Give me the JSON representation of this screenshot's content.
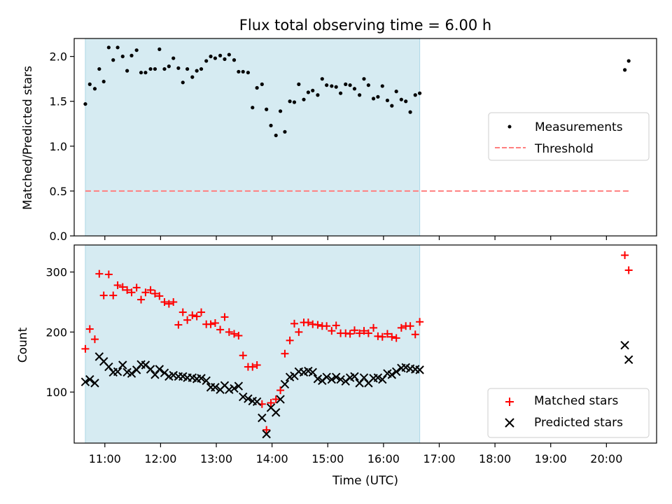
{
  "title": "Flux total observing time = 6.00 h",
  "colors": {
    "shade": "#add8e6",
    "threshold": "#ff7f7f",
    "matched": "#ff0000",
    "predicted": "#000000",
    "measurements": "#000000"
  },
  "chart_data": [
    {
      "type": "scatter",
      "ylabel": "Matched/Predicted stars",
      "xlim": [
        10.45,
        20.9
      ],
      "ylim": [
        0,
        2.2
      ],
      "yticks": [
        "0.0",
        "0.5",
        "1.0",
        "1.5",
        "2.0"
      ],
      "ytick_values": [
        0,
        0.5,
        1.0,
        1.5,
        2.0
      ],
      "shaded_span": [
        10.65,
        16.65
      ],
      "legend_position": "center-right",
      "legend": [
        "Measurements",
        "Threshold"
      ],
      "threshold": {
        "name": "Threshold",
        "y": 0.5,
        "x": [
          10.65,
          20.4
        ]
      },
      "series": [
        {
          "name": "Measurements",
          "marker": "dot",
          "x": [
            10.65,
            10.73,
            10.82,
            10.9,
            10.98,
            11.07,
            11.15,
            11.23,
            11.32,
            11.4,
            11.48,
            11.57,
            11.65,
            11.73,
            11.82,
            11.9,
            11.98,
            12.07,
            12.15,
            12.23,
            12.32,
            12.4,
            12.48,
            12.57,
            12.65,
            12.73,
            12.82,
            12.9,
            12.98,
            13.07,
            13.15,
            13.23,
            13.32,
            13.4,
            13.48,
            13.57,
            13.65,
            13.73,
            13.82,
            13.9,
            13.98,
            14.07,
            14.15,
            14.23,
            14.32,
            14.4,
            14.48,
            14.57,
            14.65,
            14.73,
            14.82,
            14.9,
            14.98,
            15.07,
            15.15,
            15.23,
            15.32,
            15.4,
            15.48,
            15.57,
            15.65,
            15.73,
            15.82,
            15.9,
            15.98,
            16.07,
            16.15,
            16.23,
            16.32,
            16.4,
            16.48,
            16.57,
            16.65,
            20.33,
            20.4
          ],
          "y": [
            1.47,
            1.69,
            1.64,
            1.86,
            1.72,
            2.1,
            1.96,
            2.1,
            2.0,
            1.84,
            2.01,
            2.07,
            1.82,
            1.82,
            1.86,
            1.86,
            2.08,
            1.86,
            1.89,
            1.98,
            1.87,
            1.71,
            1.86,
            1.77,
            1.84,
            1.86,
            1.95,
            2.0,
            1.98,
            2.01,
            1.97,
            2.02,
            1.96,
            1.83,
            1.83,
            1.82,
            1.43,
            1.65,
            1.69,
            1.41,
            1.23,
            1.12,
            1.39,
            1.16,
            1.5,
            1.49,
            1.69,
            1.52,
            1.6,
            1.62,
            1.57,
            1.75,
            1.68,
            1.67,
            1.66,
            1.59,
            1.69,
            1.68,
            1.64,
            1.57,
            1.75,
            1.68,
            1.53,
            1.55,
            1.67,
            1.51,
            1.45,
            1.61,
            1.52,
            1.5,
            1.38,
            1.57,
            1.59,
            1.85,
            1.95
          ]
        }
      ]
    },
    {
      "type": "scatter",
      "ylabel": "Count",
      "xlabel": "Time (UTC)",
      "xlim": [
        10.45,
        20.9
      ],
      "ylim": [
        15,
        345
      ],
      "yticks": [
        "100",
        "200",
        "300"
      ],
      "ytick_values": [
        100,
        200,
        300
      ],
      "xticks": [
        "11:00",
        "12:00",
        "13:00",
        "14:00",
        "15:00",
        "16:00",
        "17:00",
        "18:00",
        "19:00",
        "20:00"
      ],
      "xtick_values": [
        11,
        12,
        13,
        14,
        15,
        16,
        17,
        18,
        19,
        20
      ],
      "shaded_span": [
        10.65,
        16.65
      ],
      "legend_position": "lower-right",
      "legend": [
        "Matched stars",
        "Predicted stars"
      ],
      "series": [
        {
          "name": "Matched stars",
          "marker": "plus",
          "x": [
            10.65,
            10.73,
            10.82,
            10.9,
            10.98,
            11.07,
            11.15,
            11.23,
            11.32,
            11.4,
            11.48,
            11.57,
            11.65,
            11.73,
            11.82,
            11.9,
            11.98,
            12.07,
            12.15,
            12.23,
            12.32,
            12.4,
            12.48,
            12.57,
            12.65,
            12.73,
            12.82,
            12.9,
            12.98,
            13.07,
            13.15,
            13.23,
            13.32,
            13.4,
            13.48,
            13.57,
            13.65,
            13.73,
            13.82,
            13.9,
            13.98,
            14.07,
            14.15,
            14.23,
            14.32,
            14.4,
            14.48,
            14.57,
            14.65,
            14.73,
            14.82,
            14.9,
            14.98,
            15.07,
            15.15,
            15.23,
            15.32,
            15.4,
            15.48,
            15.57,
            15.65,
            15.73,
            15.82,
            15.9,
            15.98,
            16.07,
            16.15,
            16.23,
            16.32,
            16.4,
            16.48,
            16.57,
            16.65,
            20.33,
            20.4
          ],
          "y": [
            172,
            205,
            188,
            297,
            261,
            296,
            261,
            278,
            275,
            270,
            266,
            274,
            254,
            266,
            270,
            264,
            260,
            250,
            247,
            250,
            212,
            233,
            220,
            228,
            226,
            233,
            213,
            213,
            215,
            204,
            225,
            200,
            197,
            194,
            161,
            142,
            142,
            145,
            80,
            37,
            82,
            88,
            103,
            164,
            186,
            214,
            200,
            216,
            216,
            213,
            212,
            210,
            210,
            202,
            211,
            198,
            198,
            197,
            203,
            198,
            202,
            198,
            207,
            193,
            192,
            197,
            192,
            190,
            207,
            210,
            210,
            196,
            217,
            328,
            303
          ]
        },
        {
          "name": "Predicted stars",
          "marker": "x",
          "x": [
            10.65,
            10.73,
            10.82,
            10.9,
            10.98,
            11.07,
            11.15,
            11.23,
            11.32,
            11.4,
            11.48,
            11.57,
            11.65,
            11.73,
            11.82,
            11.9,
            11.98,
            12.07,
            12.15,
            12.23,
            12.32,
            12.4,
            12.48,
            12.57,
            12.65,
            12.73,
            12.82,
            12.9,
            12.98,
            13.07,
            13.15,
            13.23,
            13.32,
            13.4,
            13.48,
            13.57,
            13.65,
            13.73,
            13.82,
            13.9,
            13.98,
            14.07,
            14.15,
            14.23,
            14.32,
            14.4,
            14.48,
            14.57,
            14.65,
            14.73,
            14.82,
            14.9,
            14.98,
            15.07,
            15.15,
            15.23,
            15.32,
            15.4,
            15.48,
            15.57,
            15.65,
            15.73,
            15.82,
            15.9,
            15.98,
            16.07,
            16.15,
            16.23,
            16.32,
            16.4,
            16.48,
            16.57,
            16.65,
            20.33,
            20.4
          ],
          "y": [
            117,
            121,
            115,
            159,
            151,
            142,
            133,
            134,
            145,
            133,
            131,
            137,
            146,
            145,
            138,
            129,
            138,
            132,
            126,
            128,
            126,
            126,
            124,
            124,
            122,
            123,
            119,
            108,
            108,
            104,
            111,
            104,
            106,
            110,
            92,
            89,
            85,
            84,
            57,
            30,
            74,
            66,
            88,
            113,
            125,
            127,
            134,
            133,
            135,
            133,
            122,
            119,
            125,
            121,
            125,
            121,
            118,
            124,
            126,
            115,
            124,
            115,
            123,
            124,
            121,
            131,
            129,
            134,
            140,
            141,
            139,
            138,
            137,
            178,
            154
          ]
        }
      ]
    }
  ]
}
